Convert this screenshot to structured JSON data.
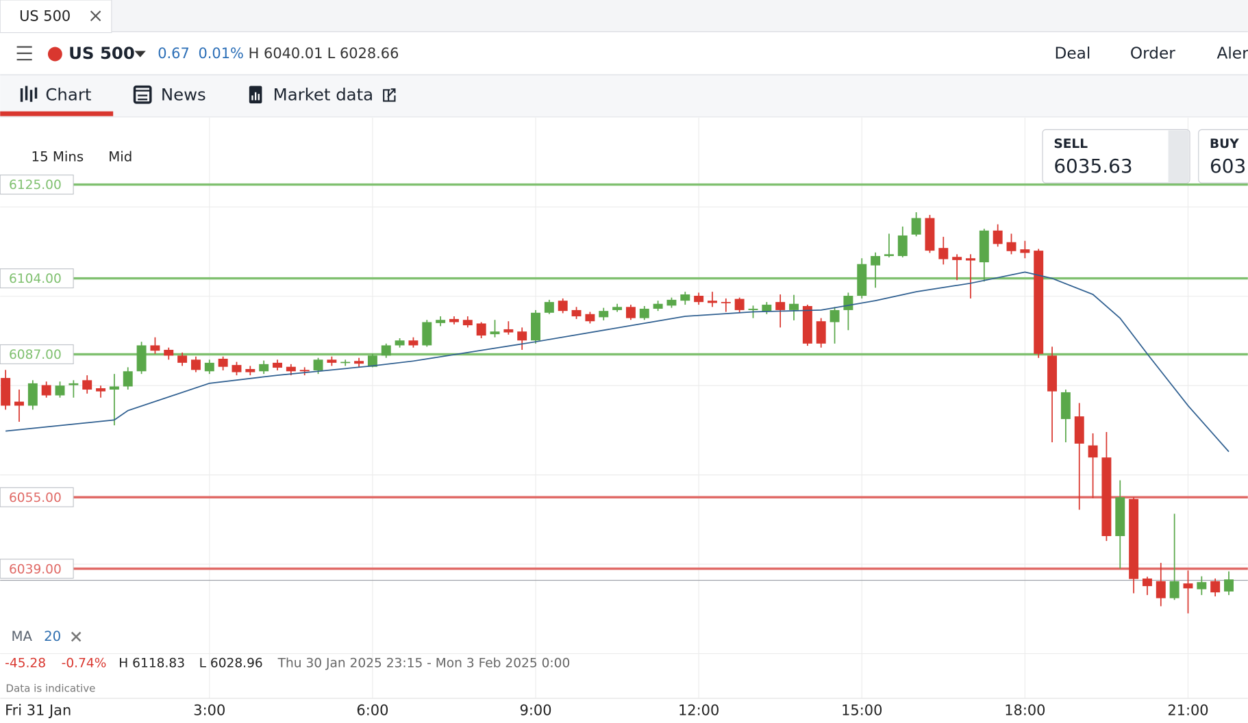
{
  "tab": {
    "title": "US 500"
  },
  "toolbar": {
    "instrument": "US 500",
    "change": "0.67",
    "change_pct": "0.01%",
    "high": "H 6040.01",
    "low": "L 6028.66",
    "actions": [
      "Deal",
      "Order",
      "Aler"
    ]
  },
  "nav": [
    "Chart",
    "News",
    "Market data"
  ],
  "chart": {
    "type": "candlestick",
    "interval": "15 Mins",
    "price_type": "Mid",
    "sell": {
      "label": "SELL",
      "price": "6035.63"
    },
    "buy": {
      "label": "BUY",
      "price": "603"
    },
    "up_color": "#5aa84a",
    "down_color": "#d9372f",
    "candles": {
      "x": [
        -0.75,
        -0.5,
        -0.25,
        0,
        0.25,
        0.5,
        0.75,
        1,
        1.25,
        1.5,
        1.75,
        2,
        2.25,
        2.5,
        2.75,
        3,
        3.25,
        3.5,
        3.75,
        4,
        4.25,
        4.5,
        4.75,
        5,
        5.25,
        5.5,
        5.75,
        6,
        6.25,
        6.5,
        6.75,
        7,
        7.25,
        7.5,
        7.75,
        8,
        8.25,
        8.5,
        8.75,
        9,
        9.25,
        9.5,
        9.75,
        10,
        10.25,
        10.5,
        10.75,
        11,
        11.25,
        11.5,
        11.75,
        12,
        12.25,
        12.5,
        12.75,
        13,
        13.25,
        13.5,
        13.75,
        14,
        14.25,
        14.5,
        14.75,
        15,
        15.25,
        15.5,
        15.75,
        16,
        16.25,
        16.5,
        16.75,
        17,
        17.25,
        17.5,
        17.75,
        18,
        18.25,
        18.5,
        18.75,
        19,
        19.25,
        19.5,
        19.75,
        20,
        20.25,
        20.5,
        20.75,
        21,
        21.25,
        21.5,
        21.75
      ],
      "open": [
        6081.7,
        6076.4,
        6075.5,
        6080.1,
        6077.8,
        6080.1,
        6081.2,
        6079.4,
        6079.1,
        6079.8,
        6083.2,
        6089.0,
        6088.0,
        6086.7,
        6085.8,
        6083.2,
        6086.0,
        6084.6,
        6083.7,
        6083.2,
        6085.1,
        6084.2,
        6083.5,
        6083.4,
        6085.8,
        6085.1,
        6085.5,
        6084.2,
        6086.7,
        6089.0,
        6090.1,
        6089.0,
        6094.0,
        6094.9,
        6094.7,
        6093.9,
        6091.5,
        6092.6,
        6092.1,
        6090.1,
        6096.3,
        6099.0,
        6096.9,
        6096.0,
        6095.3,
        6096.9,
        6097.6,
        6095.1,
        6097.2,
        6097.9,
        6099.0,
        6100.1,
        6099.0,
        6098.7,
        6099.4,
        6096.9,
        6096.5,
        6098.7,
        6096.9,
        6097.8,
        6094.4,
        6094.2,
        6096.9,
        6100.1,
        6106.9,
        6109.0,
        6109.0,
        6113.8,
        6117.5,
        6110.8,
        6108.8,
        6108.5,
        6107.6,
        6114.7,
        6112.1,
        6110.5,
        6110.2,
        6086.7,
        6072.5,
        6073.1,
        6066.6,
        6063.9,
        6046.3,
        6054.6,
        6036.8,
        6036.2,
        6032.4,
        6035.7,
        6034.4,
        6036.2,
        6033.9
      ],
      "high": [
        6083.5,
        6079.1,
        6081.2,
        6080.9,
        6080.9,
        6081.2,
        6082.3,
        6080.0,
        6082.6,
        6084.1,
        6089.8,
        6090.8,
        6088.5,
        6087.4,
        6086.5,
        6085.8,
        6086.5,
        6085.3,
        6084.4,
        6085.6,
        6085.8,
        6084.8,
        6084.1,
        6086.2,
        6086.5,
        6085.8,
        6086.2,
        6087.1,
        6089.4,
        6090.6,
        6090.8,
        6094.7,
        6095.5,
        6095.5,
        6095.5,
        6094.2,
        6094.7,
        6094.4,
        6093.0,
        6096.9,
        6099.2,
        6099.5,
        6097.6,
        6096.5,
        6097.4,
        6098.3,
        6098.1,
        6097.8,
        6099.0,
        6099.7,
        6101.0,
        6100.8,
        6101.0,
        6099.5,
        6099.7,
        6097.9,
        6098.7,
        6100.4,
        6100.3,
        6098.1,
        6095.1,
        6097.6,
        6100.8,
        6108.5,
        6109.8,
        6114.0,
        6115.6,
        6118.8,
        6118.2,
        6113.3,
        6109.4,
        6109.4,
        6115.1,
        6116.1,
        6114.0,
        6112.4,
        6110.6,
        6088.7,
        6079.1,
        6076.1,
        6069.3,
        6069.6,
        6058.8,
        6055.0,
        6037.2,
        6040.3,
        6051.3,
        6038.6,
        6037.3,
        6036.8,
        6038.4
      ],
      "low": [
        6074.6,
        6071.9,
        6074.6,
        6077.3,
        6077.3,
        6077.3,
        6078.2,
        6077.3,
        6071.1,
        6079.1,
        6082.6,
        6087.1,
        6085.8,
        6084.4,
        6083.0,
        6082.6,
        6083.4,
        6082.3,
        6082.3,
        6082.6,
        6083.4,
        6082.3,
        6082.3,
        6082.6,
        6084.4,
        6084.4,
        6084.2,
        6084.1,
        6086.2,
        6088.5,
        6088.5,
        6088.7,
        6093.3,
        6093.7,
        6093.0,
        6090.6,
        6090.8,
        6091.4,
        6088.0,
        6089.4,
        6096.0,
        6096.2,
        6094.9,
        6093.9,
        6094.6,
        6096.5,
        6094.7,
        6094.7,
        6096.7,
        6097.4,
        6098.1,
        6098.1,
        6097.6,
        6096.5,
        6096.3,
        6095.1,
        6096.0,
        6093.0,
        6094.6,
        6088.9,
        6088.5,
        6089.4,
        6092.4,
        6099.5,
        6101.9,
        6108.7,
        6108.7,
        6113.4,
        6109.7,
        6107.1,
        6103.6,
        6099.5,
        6103.3,
        6111.1,
        6109.4,
        6108.5,
        6086.2,
        6067.3,
        6067.3,
        6052.2,
        6054.8,
        6045.2,
        6039.0,
        6033.5,
        6033.1,
        6030.6,
        6032.0,
        6029.0,
        6033.1,
        6032.8,
        6033.1
      ],
      "close": [
        6075.5,
        6075.5,
        6080.5,
        6077.8,
        6080.0,
        6080.5,
        6079.1,
        6078.7,
        6079.8,
        6083.2,
        6089.0,
        6087.8,
        6086.7,
        6085.1,
        6083.5,
        6085.1,
        6084.2,
        6083.0,
        6083.0,
        6084.8,
        6084.0,
        6083.2,
        6083.2,
        6085.8,
        6085.1,
        6085.3,
        6084.9,
        6086.7,
        6089.0,
        6090.1,
        6089.0,
        6094.2,
        6094.7,
        6094.2,
        6093.5,
        6091.2,
        6092.1,
        6091.9,
        6090.1,
        6096.3,
        6098.7,
        6096.7,
        6095.5,
        6094.4,
        6096.7,
        6097.6,
        6095.1,
        6097.2,
        6098.3,
        6099.2,
        6100.4,
        6098.7,
        6098.5,
        6098.5,
        6096.9,
        6097.2,
        6098.1,
        6096.9,
        6098.3,
        6089.4,
        6089.4,
        6096.9,
        6100.1,
        6107.2,
        6109.0,
        6109.4,
        6113.6,
        6117.5,
        6110.2,
        6108.3,
        6108.1,
        6108.0,
        6114.7,
        6111.7,
        6110.1,
        6109.7,
        6087.1,
        6078.7,
        6078.5,
        6067.0,
        6063.9,
        6046.3,
        6055.0,
        6036.7,
        6035.1,
        6032.4,
        6036.2,
        6034.6,
        6036.0,
        6033.7,
        6036.6
      ]
    },
    "ma": {
      "name": "MA",
      "period": 20,
      "color": "#2f5f90",
      "x": [
        -0.75,
        1.25,
        1.5,
        3,
        4.25,
        6,
        6.75,
        9,
        11.75,
        13,
        14.25,
        15.25,
        16,
        17,
        18,
        18.5,
        19.25,
        19.75,
        20.25,
        21,
        21.75
      ],
      "values": [
        6069.8,
        6072.3,
        6074.4,
        6080.5,
        6082.3,
        6084.4,
        6085.5,
        6089.8,
        6095.5,
        6096.5,
        6096.9,
        6099.0,
        6101.0,
        6102.9,
        6105.4,
        6104.0,
        6100.4,
        6095.1,
        6087.1,
        6075.5,
        6065.2
      ]
    },
    "levels": [
      {
        "value": 6125,
        "label": "6125.00",
        "color": "#7fc06f"
      },
      {
        "value": 6104,
        "label": "6104.00",
        "color": "#7fc06f"
      },
      {
        "value": 6087,
        "label": "6087.00",
        "color": "#7fc06f"
      },
      {
        "value": 6055,
        "label": "6055.00",
        "color": "#e06a66"
      },
      {
        "value": 6039,
        "label": "6039.00",
        "color": "#e06a66"
      }
    ],
    "last_price": 6036.4,
    "ylim": [
      6020,
      6140
    ],
    "ygrid": [
      6020,
      6040,
      6060,
      6080,
      6100,
      6120
    ],
    "xlim": [
      -0.85,
      22.1
    ],
    "xticks": [
      {
        "value": 3,
        "label": "3:00"
      },
      {
        "value": 6,
        "label": "6:00"
      },
      {
        "value": 9,
        "label": "9:00"
      },
      {
        "value": 12,
        "label": "12:00"
      },
      {
        "value": 15,
        "label": "15:00"
      },
      {
        "value": 18,
        "label": "18:00"
      },
      {
        "value": 21,
        "label": "21:00"
      }
    ],
    "date_label": "Fri 31 Jan",
    "stats": {
      "change": "-45.28",
      "change_pct": "-0.74%",
      "high": "H 6118.83",
      "low": "L 6028.96",
      "range": "Thu 30 Jan 2025 23:15 - Mon 3 Feb 2025 0:00"
    },
    "note": "Data is indicative"
  }
}
